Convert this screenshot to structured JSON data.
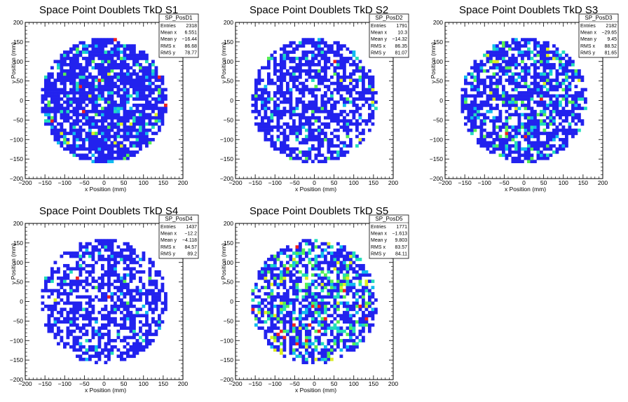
{
  "chart_data": [
    {
      "type": "heatmap",
      "title": "Space Point Doublets TkD S1",
      "xlabel": "x Position (mm)",
      "ylabel": "y Position (mm)",
      "xlim": [
        -200,
        200
      ],
      "ylim": [
        -200,
        200
      ],
      "xticks": [
        "−200",
        "−150",
        "−100",
        "−50",
        "0",
        "50",
        "100",
        "150",
        "200"
      ],
      "yticks": [
        "−200",
        "−150",
        "−100",
        "−50",
        "0",
        "50",
        "100",
        "150",
        "200"
      ],
      "radius": 160,
      "legend": "top-right",
      "stats": {
        "name": "SP_PosD1",
        "rows": [
          {
            "label": "Entries",
            "value": "2318"
          },
          {
            "label": "Mean x",
            "value": "6.551"
          },
          {
            "label": "Mean y",
            "value": "−16.44"
          },
          {
            "label": "RMS x",
            "value": "86.68"
          },
          {
            "label": "RMS y",
            "value": "78.77"
          }
        ]
      }
    },
    {
      "type": "heatmap",
      "title": "Space Point Doublets TkD S2",
      "xlabel": "x Position (mm)",
      "ylabel": "y Position (mm)",
      "xlim": [
        -200,
        200
      ],
      "ylim": [
        -200,
        200
      ],
      "xticks": [
        "−200",
        "−150",
        "−100",
        "−50",
        "0",
        "50",
        "100",
        "150",
        "200"
      ],
      "yticks": [
        "−200",
        "−150",
        "−100",
        "−50",
        "0",
        "50",
        "100",
        "150",
        "200"
      ],
      "radius": 160,
      "legend": "top-right",
      "stats": {
        "name": "SP_PosD2",
        "rows": [
          {
            "label": "Entries",
            "value": "1791"
          },
          {
            "label": "Mean x",
            "value": "10.3"
          },
          {
            "label": "Mean y",
            "value": "−14.32"
          },
          {
            "label": "RMS x",
            "value": "86.35"
          },
          {
            "label": "RMS y",
            "value": "81.07"
          }
        ]
      }
    },
    {
      "type": "heatmap",
      "title": "Space Point Doublets TkD S3",
      "xlabel": "x Position (mm)",
      "ylabel": "y Position (mm)",
      "xlim": [
        -200,
        200
      ],
      "ylim": [
        -200,
        200
      ],
      "xticks": [
        "−200",
        "−150",
        "−100",
        "−50",
        "0",
        "50",
        "100",
        "150",
        "200"
      ],
      "yticks": [
        "−200",
        "−150",
        "−100",
        "−50",
        "0",
        "50",
        "100",
        "150",
        "200"
      ],
      "radius": 160,
      "legend": "top-right",
      "stats": {
        "name": "SP_PosD3",
        "rows": [
          {
            "label": "Entries",
            "value": "2182"
          },
          {
            "label": "Mean x",
            "value": "−29.65"
          },
          {
            "label": "Mean y",
            "value": "9.45"
          },
          {
            "label": "RMS x",
            "value": "88.52"
          },
          {
            "label": "RMS y",
            "value": "81.65"
          }
        ]
      }
    },
    {
      "type": "heatmap",
      "title": "Space Point Doublets TkD S4",
      "xlabel": "x Position (mm)",
      "ylabel": "y Position (mm)",
      "xlim": [
        -200,
        200
      ],
      "ylim": [
        -200,
        200
      ],
      "xticks": [
        "−200",
        "−150",
        "−100",
        "−50",
        "0",
        "50",
        "100",
        "150",
        "200"
      ],
      "yticks": [
        "−200",
        "−150",
        "−100",
        "−50",
        "0",
        "50",
        "100",
        "150",
        "200"
      ],
      "radius": 160,
      "legend": "top-right",
      "stats": {
        "name": "SP_PosD4",
        "rows": [
          {
            "label": "Entries",
            "value": "1437"
          },
          {
            "label": "Mean x",
            "value": "−12.2"
          },
          {
            "label": "Mean y",
            "value": "−4.118"
          },
          {
            "label": "RMS x",
            "value": "84.57"
          },
          {
            "label": "RMS y",
            "value": "89.2"
          }
        ]
      }
    },
    {
      "type": "heatmap",
      "title": "Space Point Doublets TkD S5",
      "xlabel": "x Position (mm)",
      "ylabel": "y Position (mm)",
      "xlim": [
        -200,
        200
      ],
      "ylim": [
        -200,
        200
      ],
      "xticks": [
        "−200",
        "−150",
        "−100",
        "−50",
        "0",
        "50",
        "100",
        "150",
        "200"
      ],
      "yticks": [
        "−200",
        "−150",
        "−100",
        "−50",
        "0",
        "50",
        "100",
        "150",
        "200"
      ],
      "radius": 160,
      "legend": "top-right",
      "stats": {
        "name": "SP_PosD5",
        "rows": [
          {
            "label": "Entries",
            "value": "1771"
          },
          {
            "label": "Mean x",
            "value": "−1.613"
          },
          {
            "label": "Mean y",
            "value": "9.803"
          },
          {
            "label": "RMS x",
            "value": "83.57"
          },
          {
            "label": "RMS y",
            "value": "84.11"
          }
        ]
      }
    }
  ],
  "colors": {
    "blue": "#2222ee",
    "dark_blue": "#1a1aff",
    "cyan": "#11bbee",
    "teal": "#22ddbb",
    "green": "#55ee55",
    "yellow": "#ddee22",
    "red": "#ee2222",
    "frame": "#000000"
  }
}
